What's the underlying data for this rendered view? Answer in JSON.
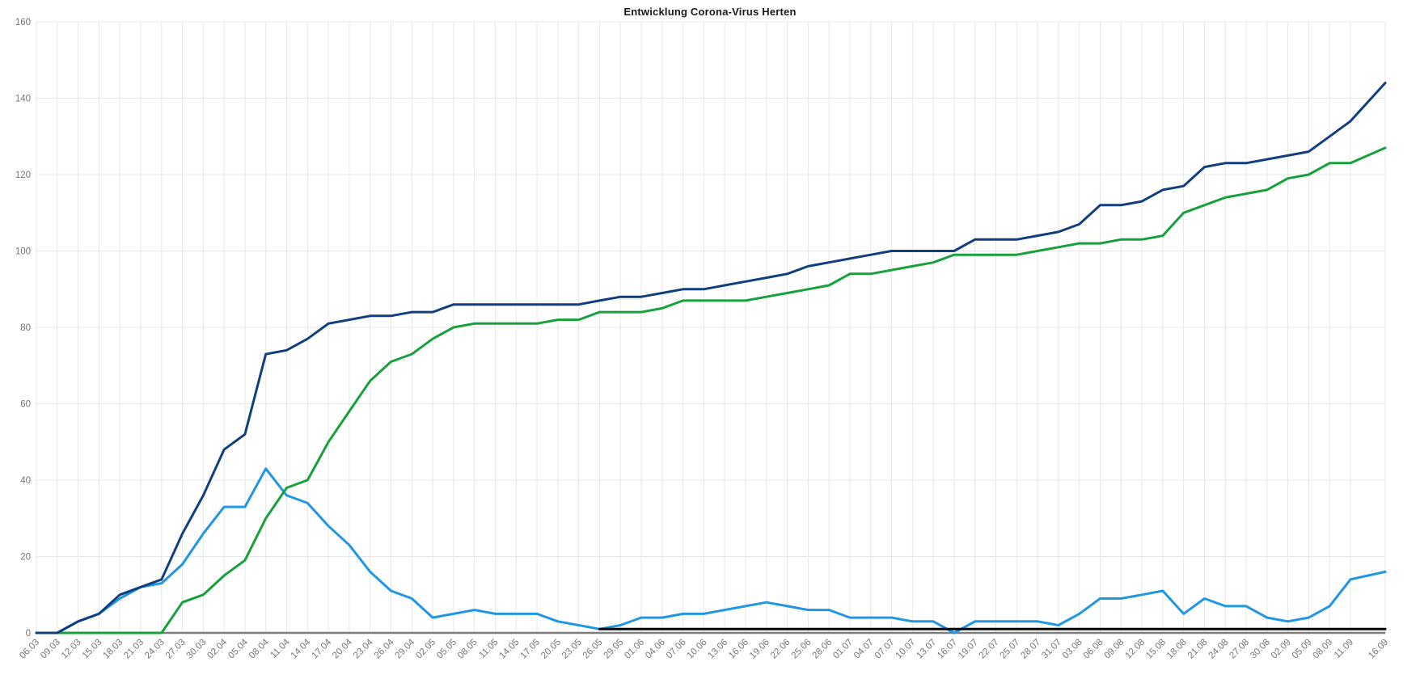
{
  "chart_data": {
    "type": "line",
    "title": "Entwicklung Corona-Virus Herten",
    "xlabel": "",
    "ylabel": "",
    "ylim": [
      0,
      160
    ],
    "y_ticks": [
      0,
      20,
      40,
      60,
      80,
      100,
      120,
      140,
      160
    ],
    "grid": true,
    "legend": "none",
    "x_tick_labels": [
      "06.03",
      "09.03",
      "12.03",
      "15.03",
      "18.03",
      "21.03",
      "24.03",
      "27.03",
      "30.03",
      "02.04",
      "05.04",
      "08.04",
      "11.04",
      "14.04",
      "17.04",
      "20.04",
      "23.04",
      "26.04",
      "29.04",
      "02.05",
      "05.05",
      "08.05",
      "11.05",
      "14.05",
      "17.05",
      "20.05",
      "23.05",
      "26.05",
      "29.05",
      "01.06",
      "04.06",
      "07.06",
      "10.06",
      "13.06",
      "16.06",
      "19.06",
      "22.06",
      "25.06",
      "28.06",
      "01.07",
      "04.07",
      "07.07",
      "10.07",
      "13.07",
      "16.07",
      "19.07",
      "22.07",
      "25.07",
      "28.07",
      "31.07",
      "03.08",
      "06.08",
      "09.08",
      "12.08",
      "15.08",
      "18.08",
      "21.08",
      "24.08",
      "27.08",
      "30.08",
      "02.09",
      "05.09",
      "08.09",
      "11.09",
      "16.09"
    ],
    "series": [
      {
        "name": "light-blue-line",
        "color": "#2196e3",
        "width": 3,
        "values": [
          0,
          0,
          3,
          5,
          9,
          12,
          13,
          18,
          26,
          33,
          33,
          43,
          36,
          34,
          28,
          23,
          16,
          11,
          9,
          4,
          5,
          6,
          5,
          5,
          5,
          3,
          2,
          1,
          2,
          4,
          4,
          5,
          5,
          6,
          7,
          8,
          7,
          6,
          6,
          4,
          4,
          4,
          3,
          3,
          0,
          3,
          3,
          3,
          3,
          2,
          5,
          9,
          9,
          10,
          11,
          5,
          9,
          7,
          7,
          4,
          3,
          4,
          7,
          14,
          16
        ]
      },
      {
        "name": "green-line",
        "color": "#18a03c",
        "width": 3,
        "values": [
          0,
          0,
          0,
          0,
          0,
          0,
          0,
          8,
          10,
          15,
          19,
          30,
          38,
          40,
          50,
          58,
          66,
          71,
          73,
          77,
          80,
          81,
          81,
          81,
          81,
          82,
          82,
          84,
          84,
          84,
          85,
          87,
          87,
          87,
          87,
          88,
          89,
          90,
          91,
          94,
          94,
          95,
          96,
          97,
          99,
          99,
          99,
          99,
          100,
          101,
          102,
          102,
          103,
          103,
          104,
          110,
          112,
          114,
          115,
          116,
          119,
          120,
          123,
          123,
          127
        ]
      },
      {
        "name": "dark-blue-line",
        "color": "#113f7e",
        "width": 3,
        "values": [
          0,
          0,
          3,
          5,
          10,
          12,
          14,
          26,
          36,
          48,
          52,
          73,
          74,
          77,
          81,
          82,
          83,
          83,
          84,
          84,
          86,
          86,
          86,
          86,
          86,
          86,
          86,
          87,
          88,
          88,
          89,
          90,
          90,
          91,
          92,
          93,
          94,
          96,
          97,
          98,
          99,
          100,
          100,
          100,
          100,
          103,
          103,
          103,
          104,
          105,
          107,
          112,
          112,
          113,
          116,
          117,
          122,
          123,
          123,
          124,
          125,
          126,
          130,
          134,
          144
        ]
      },
      {
        "name": "black-line",
        "color": "#000000",
        "width": 3,
        "values": [
          null,
          null,
          null,
          null,
          null,
          null,
          null,
          null,
          null,
          null,
          null,
          null,
          null,
          null,
          null,
          null,
          null,
          null,
          null,
          null,
          null,
          null,
          null,
          null,
          null,
          null,
          null,
          1,
          1,
          1,
          1,
          1,
          1,
          1,
          1,
          1,
          1,
          1,
          1,
          1,
          1,
          1,
          1,
          1,
          1,
          1,
          1,
          1,
          1,
          1,
          1,
          1,
          1,
          1,
          1,
          1,
          1,
          1,
          1,
          1,
          1,
          1,
          1,
          1,
          1
        ]
      }
    ],
    "style": {
      "background": "#ffffff",
      "grid_color": "#e7e7e7",
      "axis_color": "#7d7d7d",
      "tick_label_color": "#757575",
      "title_color": "#1a1a1a"
    }
  }
}
